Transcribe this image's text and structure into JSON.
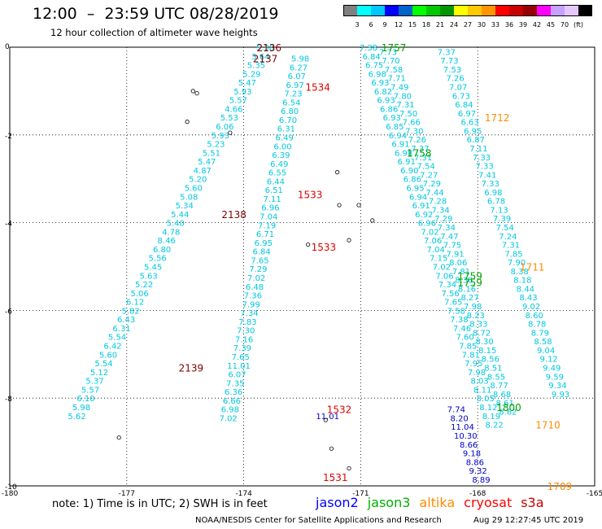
{
  "title": "12:00  –  23:59 UTC 08/28/2019",
  "subtitle": "12 hour collection of altimeter wave heights",
  "color_scale": {
    "colors": [
      "#808080",
      "#00ffff",
      "#00c8ff",
      "#0000ff",
      "#0064c8",
      "#00ff00",
      "#00c800",
      "#009600",
      "#ffff00",
      "#ffc800",
      "#ff9600",
      "#ff0000",
      "#c80000",
      "#960000",
      "#ff00ff",
      "#c8a0ff",
      "#e6c8ff",
      "#000000"
    ],
    "labels": [
      "3",
      "6",
      "9",
      "12",
      "15",
      "18",
      "21",
      "24",
      "27",
      "30",
      "33",
      "36",
      "39",
      "42",
      "45",
      "70",
      "(ft)"
    ]
  },
  "axes": {
    "x_ticks": [
      "-180",
      "-177",
      "-174",
      "-171",
      "-168",
      "-165"
    ],
    "y_ticks": [
      "0",
      "-2",
      "-4",
      "-6",
      "-8",
      "-10"
    ],
    "lon_range": [
      -180,
      -165
    ],
    "lat_range": [
      -10,
      0
    ]
  },
  "track_times": [
    {
      "text": "2136",
      "color": "#800000",
      "lon": -173.35,
      "lat": 0.0
    },
    {
      "text": "2137",
      "color": "#800000",
      "lon": -173.45,
      "lat": -0.25
    },
    {
      "text": "1534",
      "color": "#e00000",
      "lon": -172.1,
      "lat": -0.9
    },
    {
      "text": "1533",
      "color": "#e00000",
      "lon": -172.3,
      "lat": -3.35
    },
    {
      "text": "1533",
      "color": "#e00000",
      "lon": -171.95,
      "lat": -4.55
    },
    {
      "text": "2138",
      "color": "#800000",
      "lon": -174.25,
      "lat": -3.8
    },
    {
      "text": "2139",
      "color": "#800000",
      "lon": -175.35,
      "lat": -7.3
    },
    {
      "text": "1532",
      "color": "#e00000",
      "lon": -171.55,
      "lat": -8.25
    },
    {
      "text": "1531",
      "color": "#e00000",
      "lon": -171.65,
      "lat": -9.8
    },
    {
      "text": "1757",
      "color": "#00a000",
      "lon": -170.15,
      "lat": 0.0
    },
    {
      "text": "1758",
      "color": "#00a000",
      "lon": -169.5,
      "lat": -2.4
    },
    {
      "text": "1759",
      "color": "#00a000",
      "lon": -168.2,
      "lat": -5.2
    },
    {
      "text": "1759",
      "color": "#00a000",
      "lon": -168.2,
      "lat": -5.35
    },
    {
      "text": "1800",
      "color": "#00a000",
      "lon": -167.2,
      "lat": -8.2
    },
    {
      "text": "1712",
      "color": "#ff8c00",
      "lon": -167.5,
      "lat": -1.6
    },
    {
      "text": "1711",
      "color": "#ff8c00",
      "lon": -166.6,
      "lat": -5.0
    },
    {
      "text": "1710",
      "color": "#ff8c00",
      "lon": -166.2,
      "lat": -8.6
    },
    {
      "text": "1709",
      "color": "#ff8c00",
      "lon": -165.9,
      "lat": -10.0
    }
  ],
  "swh_columns": [
    {
      "color": "#00c8e0",
      "start_lon": -173.45,
      "start_lat": 0.0,
      "step_lon": -0.115,
      "step_lat": -0.2,
      "values": [
        "5.38",
        "5.64",
        "5.35",
        "5.29",
        "5.47",
        "5.93",
        "5.57",
        "4.66",
        "5.53",
        "6.06",
        "5.93",
        "5.23",
        "5.51",
        "5.47",
        "4.87",
        "5.20",
        "5.60",
        "5.08",
        "5.34",
        "5.44",
        "5.40",
        "4.78",
        "8.46",
        "6.80",
        "5.56",
        "5.45",
        "5.63",
        "5.22",
        "5.06",
        "6.12",
        "5.82",
        "6.43",
        "6.31",
        "5.54",
        "6.42",
        "5.60",
        "5.54",
        "5.12",
        "5.37",
        "5.57",
        "6.10",
        "5.98",
        "5.62"
      ]
    },
    {
      "color": "#00c8e0",
      "start_lon": -172.55,
      "start_lat": -0.25,
      "step_lon": -0.045,
      "step_lat": -0.2,
      "values": [
        "5.98",
        "6.27",
        "6.07",
        "6.97",
        "7.23",
        "6.54",
        "6.80",
        "6.70",
        "6.31",
        "6.49",
        "6.00",
        "6.39",
        "6.49",
        "6.55",
        "6.44",
        "6.51",
        "7.11",
        "6.96",
        "7.04",
        "7.19",
        "6.71",
        "6.95",
        "6.84",
        "7.65",
        "7.29",
        "7.02",
        "6.48",
        "7.36",
        "7.99",
        "7.34",
        "7.83",
        "7.30",
        "7.16",
        "7.39",
        "7.65",
        "11.01",
        "6.07",
        "7.35",
        "6.36",
        "6.66",
        "6.98",
        "7.02"
      ]
    },
    {
      "color": "#0000c8",
      "start_lon": -171.85,
      "start_lat": -8.4,
      "step_lon": 0,
      "step_lat": 0,
      "values": [
        "11.01"
      ]
    },
    {
      "color": "#00c8e0",
      "start_lon": -170.8,
      "start_lat": 0.0,
      "step_lon": 0.075,
      "step_lat": -0.2,
      "values": [
        "7.38",
        "6.84",
        "6.75",
        "6.98",
        "6.93",
        "6.82",
        "6.93",
        "6.86",
        "6.93",
        "6.85",
        "6.94",
        "6.91",
        "6.98",
        "6.91",
        "6.90",
        "6.86",
        "6.95",
        "6.94",
        "6.91",
        "6.92",
        "6.96",
        "7.02",
        "7.06",
        "7.04",
        "7.15",
        "7.02",
        "7.06",
        "7.34",
        "7.56",
        "7.65",
        "7.58",
        "7.38",
        "7.46",
        "7.60",
        "7.85",
        "7.81",
        "7.95",
        "7.98",
        "8.03",
        "8.11",
        "8.05",
        "8.12",
        "8.19",
        "8.22"
      ]
    },
    {
      "color": "#00c8e0",
      "start_lon": -170.3,
      "start_lat": -0.1,
      "step_lon": 0.075,
      "step_lat": -0.2,
      "values": [
        "7.73",
        "7.70",
        "7.58",
        "7.71",
        "7.49",
        "7.80",
        "7.31",
        "7.50",
        "7.66",
        "7.30",
        "7.26",
        "7.37",
        "7.31",
        "7.54",
        "7.27",
        "7.29",
        "7.44",
        "7.28",
        "7.34",
        "7.29",
        "7.34",
        "7.47",
        "7.75",
        "7.91",
        "8.06",
        "7.81",
        "8.38",
        "8.16",
        "8.27",
        "7.98",
        "8.23",
        "8.33",
        "8.72",
        "8.30",
        "8.15",
        "8.56",
        "8.51",
        "8.55",
        "8.77",
        "8.68",
        "8.61",
        "8.62"
      ]
    },
    {
      "color": "#00c8e0",
      "start_lon": -168.8,
      "start_lat": -0.1,
      "step_lon": 0.075,
      "step_lat": -0.2,
      "values": [
        "7.37",
        "7.73",
        "7.53",
        "7.26",
        "7.07",
        "6.73",
        "6.84",
        "6.97",
        "6.63",
        "6.95",
        "6.87",
        "7.11",
        "7.33",
        "7.33",
        "7.41",
        "7.33",
        "6.98",
        "6.78",
        "7.13",
        "7.39",
        "7.54",
        "7.24",
        "7.31",
        "7.85",
        "7.90",
        "8.38",
        "8.18",
        "8.44",
        "8.43",
        "9.02",
        "8.60",
        "8.78",
        "8.79",
        "8.58",
        "9.04",
        "9.12",
        "9.49",
        "9.59",
        "9.34",
        "9.93"
      ]
    },
    {
      "color": "#0000c8",
      "start_lon": -168.55,
      "start_lat": -8.25,
      "step_lon": 0.08,
      "step_lat": -0.2,
      "values": [
        "7.74",
        "8.20",
        "11.04",
        "10.30",
        "8.66",
        "9.18",
        "8.86",
        "9.32",
        "8.89"
      ]
    }
  ],
  "note": "note:  1) Time is in UTC; 2) SWH is in feet",
  "satellites": [
    {
      "name": "jason2",
      "color": "#0000ff"
    },
    {
      "name": "jason3",
      "color": "#00b000"
    },
    {
      "name": "altika",
      "color": "#ff8c00"
    },
    {
      "name": "cryosat",
      "color": "#ff0000"
    },
    {
      "name": "s3a",
      "color": "#c80000"
    }
  ],
  "footer_org": "NOAA/NESDIS Center for Satellite Applications and Research",
  "footer_time": "Aug 29 12:27:45 UTC 2019"
}
